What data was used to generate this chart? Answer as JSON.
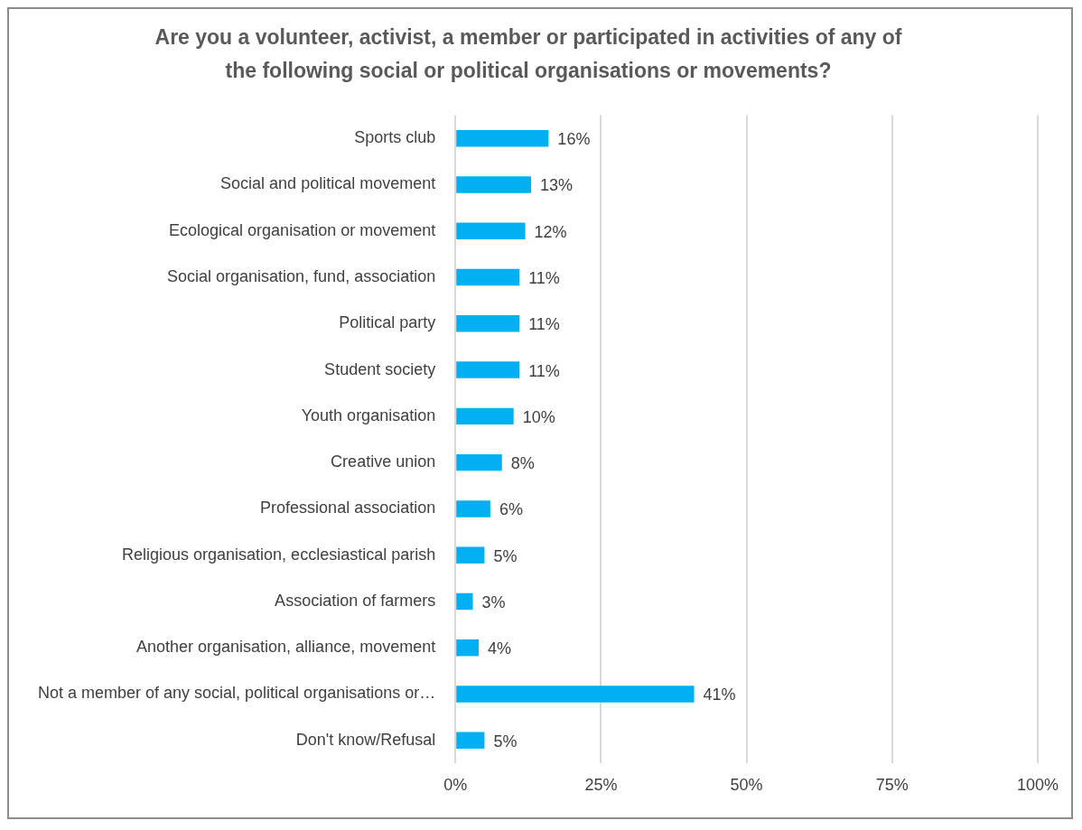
{
  "chart_data": {
    "type": "bar",
    "orientation": "horizontal",
    "title": "Are you a volunteer, activist, a member or participated in activities of any of the following social or political organisations or movements?",
    "categories": [
      "Sports club",
      "Social and political movement",
      "Ecological organisation or movement",
      "Social organisation, fund, association",
      "Political party",
      "Student society",
      "Youth organisation",
      "Creative union",
      "Professional association",
      "Religious organisation, ecclesiastical parish",
      "Association of farmers",
      "Another organisation, alliance, movement",
      "Not a member of any social, political organisations or…",
      "Don't know/Refusal"
    ],
    "values": [
      16,
      13,
      12,
      11,
      11,
      11,
      10,
      8,
      6,
      5,
      3,
      4,
      41,
      5
    ],
    "value_labels": [
      "16%",
      "13%",
      "12%",
      "11%",
      "11%",
      "11%",
      "10%",
      "8%",
      "6%",
      "5%",
      "3%",
      "4%",
      "41%",
      "5%"
    ],
    "color": "#00b0f0",
    "xlim": [
      0,
      100
    ],
    "xticks": [
      {
        "value": 0,
        "label": "0%"
      },
      {
        "value": 25,
        "label": "25%"
      },
      {
        "value": 50,
        "label": "50%"
      },
      {
        "value": 75,
        "label": "75%"
      },
      {
        "value": 100,
        "label": "100%"
      }
    ],
    "grid": "x"
  }
}
